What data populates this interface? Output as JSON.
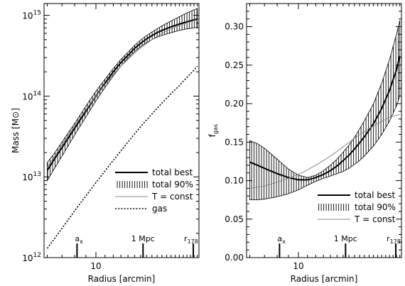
{
  "chart_data": [
    {
      "type": "line",
      "xlabel": "Radius [arcmin]",
      "ylabel": "Mass [M",
      "ylabel_symbol": "⊙",
      "ylabel_close": "]",
      "xscale": "log",
      "yscale": "log",
      "xlim": [
        5.8,
        29.5
      ],
      "ylim": [
        1000000000000.0,
        1400000000000000.0
      ],
      "x_ticks": [
        {
          "value": 10,
          "label": "10"
        }
      ],
      "y_ticks": [
        {
          "value": 1000000000000.0,
          "base": "10",
          "exp": "12"
        },
        {
          "value": 10000000000000.0,
          "base": "10",
          "exp": "13"
        },
        {
          "value": 100000000000000.0,
          "base": "10",
          "exp": "14"
        },
        {
          "value": 1000000000000000.0,
          "base": "10",
          "exp": "15"
        }
      ],
      "markers": [
        {
          "x": 8.2,
          "base": "a",
          "sub": "x"
        },
        {
          "x": 16.4,
          "label": "1 Mpc"
        },
        {
          "x": 27.8,
          "base": "r",
          "sub": "178"
        }
      ],
      "legend_position": "bottom-right",
      "legend": [
        {
          "label": "total best",
          "style": "thick-solid"
        },
        {
          "label": "total 90%",
          "style": "hatched"
        },
        {
          "label": "T = const",
          "style": "thin-gray"
        },
        {
          "label": "gas",
          "style": "dotted"
        }
      ],
      "series": [
        {
          "name": "total best",
          "x": [
            6.0,
            6.5,
            7.0,
            8.0,
            9.0,
            10.0,
            11.0,
            12.0,
            13.0,
            14.0,
            15.0,
            16.0,
            17.0,
            18.0,
            19.0,
            20.0,
            22.0,
            24.0,
            26.0,
            28.0,
            29.0
          ],
          "y": [
            12000000000000.0,
            17000000000000.0,
            23000000000000.0,
            40000000000000.0,
            65000000000000.0,
            100000000000000.0,
            145000000000000.0,
            200000000000000.0,
            260000000000000.0,
            320000000000000.0,
            390000000000000.0,
            450000000000000.0,
            510000000000000.0,
            560000000000000.0,
            610000000000000.0,
            650000000000000.0,
            720000000000000.0,
            780000000000000.0,
            830000000000000.0,
            880000000000000.0,
            900000000000000.0
          ]
        },
        {
          "name": "total 90% upper",
          "x": [
            6.0,
            6.5,
            7.0,
            8.0,
            9.0,
            10.0,
            11.0,
            12.0,
            13.0,
            14.0,
            15.0,
            16.0,
            17.0,
            18.0,
            19.0,
            20.0,
            22.0,
            24.0,
            26.0,
            28.0,
            29.0
          ],
          "y": [
            15000000000000.0,
            20000000000000.0,
            27000000000000.0,
            46000000000000.0,
            75000000000000.0,
            115000000000000.0,
            162000000000000.0,
            220000000000000.0,
            285000000000000.0,
            350000000000000.0,
            425000000000000.0,
            495000000000000.0,
            560000000000000.0,
            620000000000000.0,
            680000000000000.0,
            740000000000000.0,
            850000000000000.0,
            960000000000000.0,
            1070000000000000.0,
            1170000000000000.0,
            1220000000000000.0
          ]
        },
        {
          "name": "total 90% lower",
          "x": [
            6.0,
            6.5,
            7.0,
            8.0,
            9.0,
            10.0,
            11.0,
            12.0,
            13.0,
            14.0,
            15.0,
            16.0,
            17.0,
            18.0,
            19.0,
            20.0,
            22.0,
            24.0,
            26.0,
            28.0,
            29.0
          ],
          "y": [
            9000000000000.0,
            13000000000000.0,
            18000000000000.0,
            33000000000000.0,
            55000000000000.0,
            87000000000000.0,
            128000000000000.0,
            178000000000000.0,
            235000000000000.0,
            295000000000000.0,
            355000000000000.0,
            410000000000000.0,
            460000000000000.0,
            500000000000000.0,
            535000000000000.0,
            565000000000000.0,
            610000000000000.0,
            650000000000000.0,
            680000000000000.0,
            700000000000000.0,
            710000000000000.0
          ]
        },
        {
          "name": "T = const",
          "x": [
            6.0,
            7.0,
            8.0,
            9.0,
            10.0,
            11.0,
            12.0,
            13.0,
            14.0,
            15.0,
            16.0,
            18.0,
            20.0,
            22.0,
            24.0,
            26.0,
            28.0,
            29.0
          ],
          "y": [
            13000000000000.0,
            25000000000000.0,
            43000000000000.0,
            68000000000000.0,
            100000000000000.0,
            140000000000000.0,
            185000000000000.0,
            235000000000000.0,
            285000000000000.0,
            340000000000000.0,
            395000000000000.0,
            500000000000000.0,
            600000000000000.0,
            680000000000000.0,
            750000000000000.0,
            810000000000000.0,
            860000000000000.0,
            880000000000000.0
          ]
        },
        {
          "name": "gas",
          "x": [
            6.0,
            7.0,
            8.0,
            9.0,
            10.0,
            12.0,
            14.0,
            16.0,
            18.0,
            20.0,
            22.0,
            24.0,
            26.0,
            28.0,
            29.0
          ],
          "y": [
            1300000000000.0,
            2300000000000.0,
            3800000000000.0,
            5800000000000.0,
            8500000000000.0,
            16000000000000.0,
            27000000000000.0,
            42000000000000.0,
            60000000000000.0,
            82000000000000.0,
            107000000000000.0,
            135000000000000.0,
            170000000000000.0,
            210000000000000.0,
            235000000000000.0
          ]
        }
      ]
    },
    {
      "type": "line",
      "xlabel": "Radius [arcmin]",
      "ylabel": "f",
      "ylabel_sub": "gas",
      "xscale": "log",
      "yscale": "linear",
      "xlim": [
        5.8,
        29.5
      ],
      "ylim": [
        0.0,
        0.33
      ],
      "x_ticks": [
        {
          "value": 10,
          "label": "10"
        }
      ],
      "y_ticks": [
        {
          "value": 0.0,
          "label": "0.00"
        },
        {
          "value": 0.05,
          "label": "0.05"
        },
        {
          "value": 0.1,
          "label": "0.10"
        },
        {
          "value": 0.15,
          "label": "0.15"
        },
        {
          "value": 0.2,
          "label": "0.20"
        },
        {
          "value": 0.25,
          "label": "0.25"
        },
        {
          "value": 0.3,
          "label": "0.30"
        }
      ],
      "markers": [
        {
          "x": 8.2,
          "base": "a",
          "sub": "x"
        },
        {
          "x": 16.4,
          "label": "1 Mpc"
        },
        {
          "x": 27.8,
          "base": "r",
          "sub": "178"
        }
      ],
      "legend_position": "bottom-right",
      "legend": [
        {
          "label": "total best",
          "style": "thick-solid"
        },
        {
          "label": "total 90%",
          "style": "hatched"
        },
        {
          "label": "T = const",
          "style": "thin-gray"
        }
      ],
      "series": [
        {
          "name": "total best",
          "x": [
            6.0,
            6.5,
            7.0,
            8.0,
            9.0,
            10.0,
            11.0,
            12.0,
            13.0,
            14.0,
            15.0,
            16.0,
            17.0,
            18.0,
            19.0,
            20.0,
            22.0,
            24.0,
            26.0,
            28.0,
            29.0
          ],
          "y": [
            0.124,
            0.12,
            0.116,
            0.109,
            0.104,
            0.101,
            0.101,
            0.104,
            0.108,
            0.113,
            0.119,
            0.126,
            0.133,
            0.141,
            0.149,
            0.157,
            0.174,
            0.194,
            0.217,
            0.244,
            0.262
          ]
        },
        {
          "name": "total 90% upper",
          "x": [
            6.0,
            6.5,
            7.0,
            8.0,
            9.0,
            10.0,
            11.0,
            12.0,
            13.0,
            14.0,
            15.0,
            16.0,
            17.0,
            18.0,
            19.0,
            20.0,
            22.0,
            24.0,
            26.0,
            28.0,
            29.0
          ],
          "y": [
            0.152,
            0.148,
            0.142,
            0.128,
            0.115,
            0.107,
            0.104,
            0.107,
            0.113,
            0.12,
            0.128,
            0.137,
            0.146,
            0.156,
            0.167,
            0.178,
            0.2,
            0.227,
            0.257,
            0.29,
            0.308
          ]
        },
        {
          "name": "total 90% lower",
          "x": [
            6.0,
            6.5,
            7.0,
            8.0,
            9.0,
            10.0,
            11.0,
            12.0,
            13.0,
            14.0,
            15.0,
            16.0,
            17.0,
            18.0,
            19.0,
            20.0,
            22.0,
            24.0,
            26.0,
            28.0,
            29.0
          ],
          "y": [
            0.075,
            0.075,
            0.076,
            0.079,
            0.083,
            0.088,
            0.094,
            0.099,
            0.103,
            0.106,
            0.109,
            0.112,
            0.116,
            0.121,
            0.126,
            0.132,
            0.145,
            0.16,
            0.177,
            0.197,
            0.21
          ]
        },
        {
          "name": "T = const",
          "x": [
            6.0,
            7.0,
            8.0,
            9.0,
            10.0,
            11.0,
            12.0,
            13.0,
            14.0,
            15.0,
            16.0,
            18.0,
            20.0,
            22.0,
            24.0,
            26.0,
            28.0,
            29.0
          ],
          "y": [
            0.09,
            0.093,
            0.098,
            0.103,
            0.108,
            0.114,
            0.12,
            0.126,
            0.132,
            0.138,
            0.144,
            0.155,
            0.164,
            0.171,
            0.177,
            0.182,
            0.185,
            0.186
          ]
        }
      ]
    }
  ]
}
